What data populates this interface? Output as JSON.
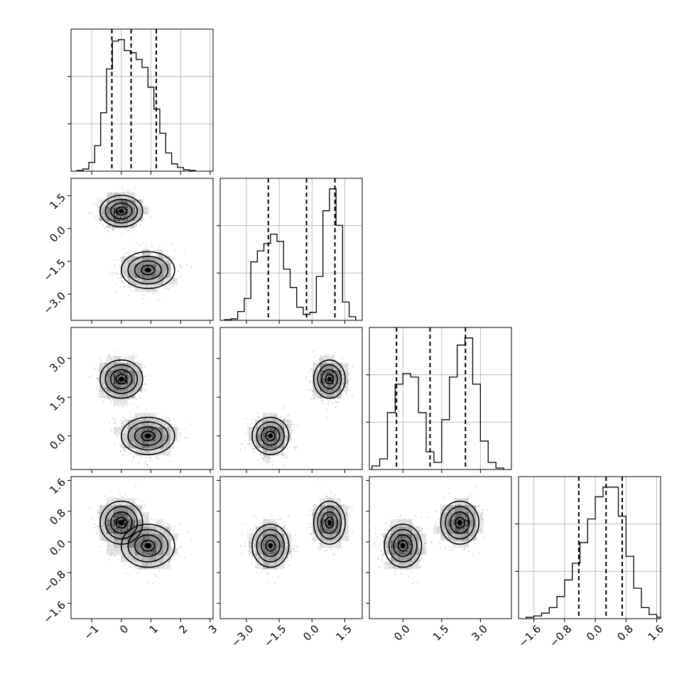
{
  "chart_data": {
    "type": "corner",
    "title": "",
    "variables": [
      "",
      "",
      "",
      ""
    ],
    "quantile_lines": [
      [
        -0.32,
        0.33,
        1.18
      ],
      [
        -2.0,
        -0.25,
        1.05
      ],
      [
        -0.25,
        1.05,
        2.42
      ],
      [
        -0.43,
        0.28,
        0.7
      ]
    ],
    "axis_limits": [
      [
        -1.7,
        3.1
      ],
      [
        -4.2,
        2.3
      ],
      [
        -1.3,
        4.2
      ],
      [
        -2.0,
        1.7
      ]
    ],
    "tick_values": [
      [
        -1,
        0,
        1,
        2,
        3
      ],
      [
        -3.0,
        -1.5,
        0.0,
        1.5
      ],
      [
        0.0,
        1.5,
        3.0
      ],
      [
        -1.6,
        -0.8,
        0.0,
        0.8,
        1.6
      ]
    ],
    "tick_labels": [
      [
        "−1",
        "0",
        "1",
        "2",
        "3"
      ],
      [
        "−3.0",
        "−1.5",
        "0.0",
        "1.5"
      ],
      [
        "0.0",
        "1.5",
        "3.0"
      ],
      [
        "−1.6",
        "−0.8",
        "0.0",
        "0.8",
        "1.6"
      ]
    ],
    "histograms": [
      {
        "bin_edges": [
          -1.5,
          -1.3,
          -1.1,
          -0.9,
          -0.7,
          -0.5,
          -0.3,
          -0.1,
          0.1,
          0.3,
          0.5,
          0.7,
          0.9,
          1.1,
          1.3,
          1.5,
          1.7,
          1.9,
          2.1,
          2.3,
          2.5
        ],
        "counts": [
          1,
          3,
          12,
          35,
          80,
          140,
          178,
          180,
          165,
          162,
          153,
          142,
          115,
          85,
          52,
          25,
          10,
          5,
          2,
          1
        ]
      },
      {
        "bin_edges": [
          -4.0,
          -3.7,
          -3.4,
          -3.1,
          -2.8,
          -2.5,
          -2.2,
          -1.9,
          -1.6,
          -1.3,
          -1.0,
          -0.7,
          -0.4,
          -0.1,
          0.2,
          0.5,
          0.8,
          1.1,
          1.4,
          1.7,
          2.0
        ],
        "counts": [
          1,
          2,
          12,
          30,
          80,
          95,
          105,
          118,
          108,
          70,
          45,
          18,
          8,
          11,
          60,
          150,
          180,
          130,
          25,
          5
        ]
      },
      {
        "bin_edges": [
          -1.2,
          -0.9,
          -0.6,
          -0.3,
          0.0,
          0.3,
          0.6,
          0.9,
          1.2,
          1.5,
          1.8,
          2.1,
          2.4,
          2.7,
          3.0,
          3.3,
          3.6,
          3.9
        ],
        "counts": [
          5,
          15,
          80,
          120,
          135,
          130,
          80,
          25,
          10,
          70,
          130,
          175,
          185,
          120,
          40,
          10,
          2
        ]
      },
      {
        "bin_edges": [
          -1.8,
          -1.6,
          -1.4,
          -1.2,
          -1.0,
          -0.8,
          -0.6,
          -0.4,
          -0.2,
          0.0,
          0.2,
          0.4,
          0.6,
          0.8,
          1.0,
          1.2,
          1.4,
          1.6,
          1.8
        ],
        "counts": [
          1,
          2,
          4,
          8,
          16,
          28,
          40,
          55,
          72,
          88,
          95,
          95,
          74,
          45,
          22,
          8,
          3,
          1
        ]
      }
    ],
    "mixture_components": [
      {
        "mean": [
          0.0,
          0.8,
          2.2,
          0.5
        ],
        "sd": [
          0.36,
          0.36,
          0.37,
          0.28
        ],
        "weight": 0.5
      },
      {
        "mean": [
          0.9,
          -1.9,
          0.0,
          -0.1
        ],
        "sd": [
          0.45,
          0.42,
          0.36,
          0.28
        ],
        "weight": 0.5
      }
    ],
    "contour_levels_sigma": [
      0.5,
      1.0,
      1.5,
      2.0
    ]
  }
}
